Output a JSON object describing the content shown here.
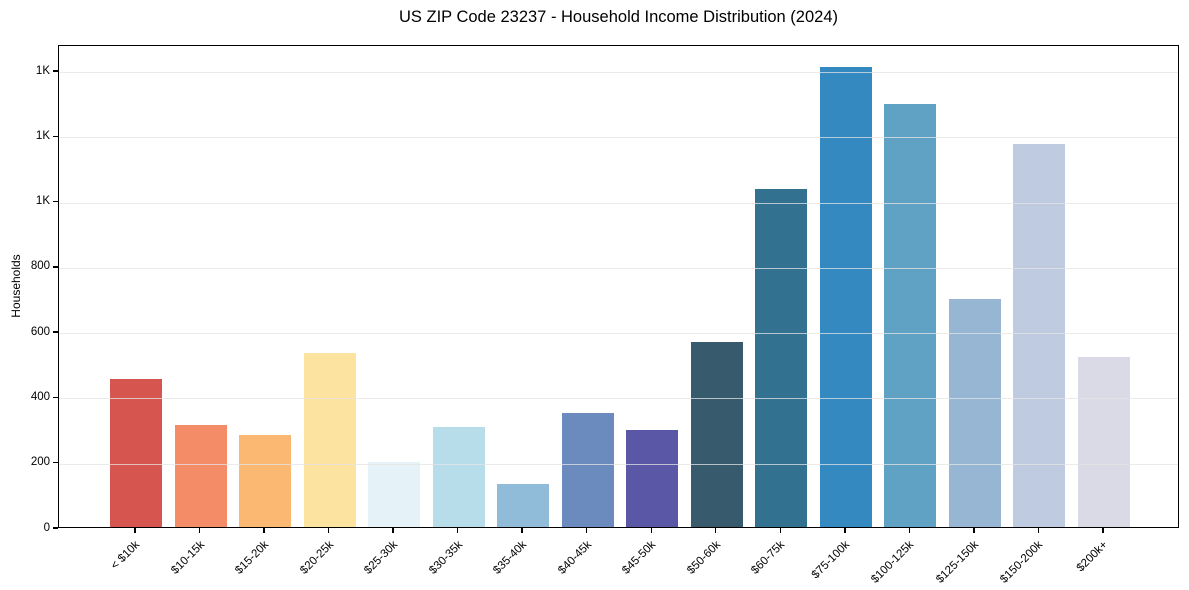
{
  "chart_data": {
    "type": "bar",
    "title": "US ZIP Code 23237 - Household Income Distribution (2024)",
    "xlabel": "",
    "ylabel": "Households",
    "categories": [
      "< $10k",
      "$10-15k",
      "$15-20k",
      "$20-25k",
      "$25-30k",
      "$30-35k",
      "$35-40k",
      "$40-45k",
      "$45-50k",
      "$50-60k",
      "$60-75k",
      "$75-100k",
      "$100-125k",
      "$125-150k",
      "$150-200k",
      "$200k+"
    ],
    "values": [
      455,
      312,
      281,
      532,
      199,
      306,
      133,
      350,
      297,
      567,
      1035,
      1410,
      1295,
      698,
      1175,
      520
    ],
    "bar_colors": [
      "#d6554e",
      "#f48c68",
      "#fab873",
      "#fde3a0",
      "#e5f2f8",
      "#b7dcea",
      "#91bcd9",
      "#6b8bbf",
      "#5a57a6",
      "#375a6c",
      "#32718f",
      "#3489c0",
      "#5fa2c4",
      "#96b6d4",
      "#bfcbe0",
      "#dad9e6"
    ],
    "yticks": {
      "values": [
        0,
        200,
        400,
        600,
        800,
        1000,
        1200,
        1400
      ],
      "labels": [
        "0",
        "200",
        "400",
        "600",
        "800",
        "1K",
        "1K",
        "1K"
      ]
    },
    "ylim": [
      0,
      1480
    ],
    "grid": "horizontal",
    "legend_position": "none",
    "background": "#ffffff",
    "spine_color": "#000000"
  }
}
